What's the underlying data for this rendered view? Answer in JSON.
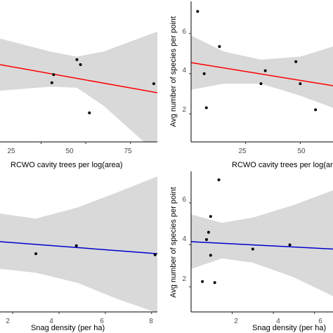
{
  "chart_data": [
    {
      "type": "scatter",
      "xlabel": "RCWO cavity trees per log(area)",
      "ylabel": "",
      "xlim": [
        2,
        90
      ],
      "ylim": [
        0.6,
        7.6
      ],
      "xticks": [
        "25",
        "50",
        "75"
      ],
      "yticks": [],
      "points": [
        [
          31,
          3.55
        ],
        [
          32,
          3.95
        ],
        [
          45,
          4.7
        ],
        [
          47,
          4.45
        ],
        [
          52,
          2.05
        ],
        [
          88,
          3.5
        ]
      ],
      "fit": {
        "x": [
          2,
          90
        ],
        "y": [
          4.45,
          3.05
        ],
        "color": "#ff0000"
      },
      "band": {
        "upper": [
          [
            2,
            5.75
          ],
          [
            30,
            5.1
          ],
          [
            45,
            4.85
          ],
          [
            60,
            5.1
          ],
          [
            75,
            5.6
          ],
          [
            90,
            6.1
          ]
        ],
        "lower": [
          [
            2,
            3.15
          ],
          [
            30,
            3.35
          ],
          [
            45,
            3.3
          ],
          [
            60,
            2.4
          ],
          [
            75,
            1.2
          ],
          [
            90,
            0.0
          ]
        ]
      },
      "grid": false
    },
    {
      "type": "scatter",
      "xlabel": "RCWO cavity trees per log(area)",
      "ylabel": "Avg number of species per point",
      "xlim": [
        0,
        65
      ],
      "ylim": [
        0.6,
        7.6
      ],
      "xticks": [
        "25",
        "50"
      ],
      "yticks": [
        "2",
        "4",
        "6"
      ],
      "points": [
        [
          3,
          7.1
        ],
        [
          6,
          4.0
        ],
        [
          7,
          2.3
        ],
        [
          13,
          5.35
        ],
        [
          32,
          3.5
        ],
        [
          34,
          4.15
        ],
        [
          48,
          4.6
        ],
        [
          50,
          3.5
        ],
        [
          57,
          2.2
        ]
      ],
      "fit": {
        "x": [
          0,
          65
        ],
        "y": [
          4.55,
          3.4
        ],
        "color": "#ff0000"
      },
      "band": {
        "upper": [
          [
            0,
            5.9
          ],
          [
            15,
            5.1
          ],
          [
            32,
            4.7
          ],
          [
            50,
            4.85
          ],
          [
            65,
            5.35
          ]
        ],
        "lower": [
          [
            0,
            3.2
          ],
          [
            15,
            3.5
          ],
          [
            32,
            3.5
          ],
          [
            50,
            2.9
          ],
          [
            65,
            2.3
          ]
        ]
      },
      "grid": false
    },
    {
      "type": "scatter",
      "xlabel": "Snag density (per ha)",
      "ylabel": "",
      "xlim": [
        1.45,
        8.25
      ],
      "ylim": [
        0.6,
        7.6
      ],
      "xticks": [
        "2",
        "4",
        "6",
        "8"
      ],
      "yticks": [],
      "points": [
        [
          3.0,
          3.5
        ],
        [
          4.75,
          3.9
        ],
        [
          8.15,
          3.45
        ]
      ],
      "fit": {
        "x": [
          1.45,
          8.25
        ],
        "y": [
          4.1,
          3.5
        ],
        "color": "#0000cc"
      },
      "band": {
        "upper": [
          [
            1.45,
            5.5
          ],
          [
            3,
            5.25
          ],
          [
            4.8,
            5.8
          ],
          [
            6.5,
            6.55
          ],
          [
            8.25,
            7.35
          ]
        ],
        "lower": [
          [
            1.45,
            2.75
          ],
          [
            3,
            2.55
          ],
          [
            4.8,
            2.05
          ],
          [
            6.5,
            1.25
          ],
          [
            8.25,
            0.55
          ]
        ]
      },
      "grid": false
    },
    {
      "type": "scatter",
      "xlabel": "Snag density (per ha)",
      "ylabel": "Avg number of species per point",
      "xlim": [
        0,
        6.9
      ],
      "ylim": [
        0.8,
        7.5
      ],
      "xticks": [
        "2",
        "4",
        "6"
      ],
      "yticks": [
        "2",
        "4",
        "6"
      ],
      "points": [
        [
          0.55,
          2.25
        ],
        [
          0.75,
          4.25
        ],
        [
          0.85,
          4.6
        ],
        [
          0.95,
          5.35
        ],
        [
          0.95,
          3.5
        ],
        [
          1.15,
          2.2
        ],
        [
          1.35,
          7.1
        ],
        [
          3.0,
          3.8
        ],
        [
          4.8,
          4.0
        ]
      ],
      "fit": {
        "x": [
          0,
          6.9
        ],
        "y": [
          4.15,
          3.8
        ],
        "color": "#0000cc"
      },
      "band": {
        "upper": [
          [
            0,
            5.45
          ],
          [
            1.5,
            5.05
          ],
          [
            3,
            5.3
          ],
          [
            5,
            5.9
          ],
          [
            6.9,
            6.6
          ]
        ],
        "lower": [
          [
            0,
            2.85
          ],
          [
            1.5,
            3.35
          ],
          [
            3,
            3.15
          ],
          [
            5,
            2.45
          ],
          [
            6.9,
            1.55
          ]
        ]
      },
      "grid": false
    }
  ],
  "colors": {
    "band": "#d9d9d9",
    "point": "#000000",
    "axis": "#000000"
  }
}
